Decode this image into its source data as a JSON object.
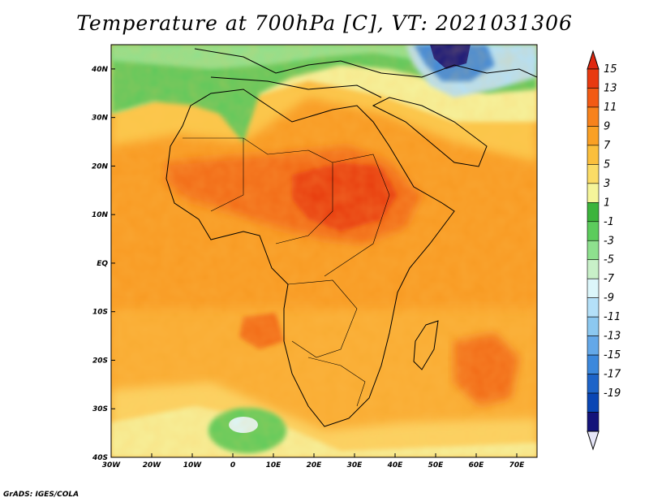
{
  "title": "Temperature at 700hPa [C], VT: 2021031306",
  "credit": "GrADS: IGES/COLA",
  "map": {
    "lon_range": [
      -30,
      75
    ],
    "lat_range": [
      -40,
      45
    ],
    "lon_ticks": [
      {
        "value": -30,
        "label": "30W"
      },
      {
        "value": -20,
        "label": "20W"
      },
      {
        "value": -10,
        "label": "10W"
      },
      {
        "value": 0,
        "label": "0"
      },
      {
        "value": 10,
        "label": "10E"
      },
      {
        "value": 20,
        "label": "20E"
      },
      {
        "value": 30,
        "label": "30E"
      },
      {
        "value": 40,
        "label": "40E"
      },
      {
        "value": 50,
        "label": "50E"
      },
      {
        "value": 60,
        "label": "60E"
      },
      {
        "value": 70,
        "label": "70E"
      }
    ],
    "lat_ticks": [
      {
        "value": 40,
        "label": "40N"
      },
      {
        "value": 30,
        "label": "30N"
      },
      {
        "value": 20,
        "label": "20N"
      },
      {
        "value": 10,
        "label": "10N"
      },
      {
        "value": 0,
        "label": "EQ"
      },
      {
        "value": -10,
        "label": "10S"
      },
      {
        "value": -20,
        "label": "20S"
      },
      {
        "value": -30,
        "label": "30S"
      },
      {
        "value": -40,
        "label": "40S"
      }
    ]
  },
  "colorbar": {
    "labels": [
      "15",
      "13",
      "11",
      "9",
      "7",
      "5",
      "3",
      "1",
      "-1",
      "-3",
      "-5",
      "-7",
      "-9",
      "-11",
      "-13",
      "-15",
      "-17",
      "-19"
    ],
    "colors": [
      "#e83a10",
      "#f25a14",
      "#f7821c",
      "#faa024",
      "#fbbf3c",
      "#fbdc66",
      "#f5f59a",
      "#3cb43c",
      "#5ccc5c",
      "#8ee08e",
      "#c8f0c8",
      "#dcf6fa",
      "#b4e0f8",
      "#8cc8f0",
      "#64a8e8",
      "#3c88dc",
      "#1e64c8",
      "#0a46b4",
      "#14147a"
    ],
    "top_triangle_color": "#e02810",
    "bottom_triangle_color": "#e6e6f8"
  }
}
